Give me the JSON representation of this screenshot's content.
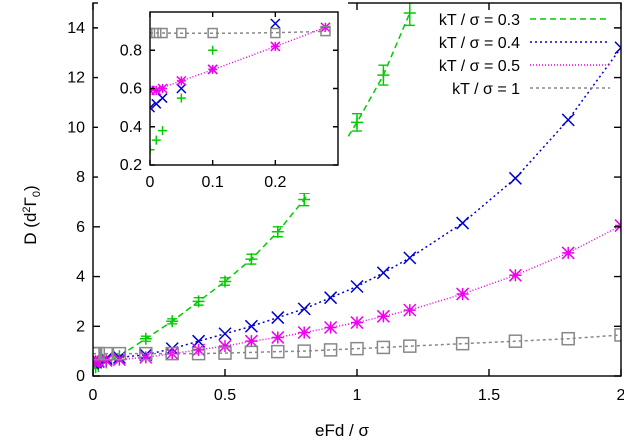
{
  "chart_data": [
    {
      "type": "line",
      "xlabel": "eFd / σ",
      "ylabel_main": "D (d",
      "ylabel_sup": "2",
      "ylabel_mid": "Γ",
      "ylabel_sub": "0",
      "ylabel_end": ")",
      "xlim": [
        0,
        2
      ],
      "ylim": [
        0,
        15
      ],
      "xticks": [
        "0",
        "0.5",
        "1",
        "1.5",
        "2"
      ],
      "yticks": [
        "0",
        "2",
        "4",
        "6",
        "8",
        "10",
        "12",
        "14"
      ],
      "xtick_values": [
        0,
        0.5,
        1,
        1.5,
        2
      ],
      "ytick_values": [
        0,
        2,
        4,
        6,
        8,
        10,
        12,
        14
      ],
      "legend_position": "top-right",
      "series": [
        {
          "name": "kT / σ = 0.3",
          "color": "#00cc00",
          "marker": "plus",
          "dash": "6,4",
          "x": [
            0,
            0.01,
            0.02,
            0.05,
            0.1,
            0.2,
            0.3,
            0.4,
            0.5,
            0.6,
            0.7,
            0.8,
            0.9,
            1.0,
            1.1,
            1.2
          ],
          "y": [
            0.3,
            0.35,
            0.4,
            0.55,
            0.8,
            1.5,
            2.2,
            3.0,
            3.8,
            4.7,
            5.8,
            7.1,
            8.5,
            10.2,
            12.1,
            14.6
          ],
          "err": [
            0,
            0,
            0,
            0,
            0,
            0.1,
            0.1,
            0.15,
            0.15,
            0.2,
            0.2,
            0.25,
            0.3,
            0.35,
            0.4,
            0.5
          ]
        },
        {
          "name": "kT / σ = 0.4",
          "color": "#0000cc",
          "marker": "cross",
          "dash": "2,3",
          "x": [
            0,
            0.01,
            0.02,
            0.05,
            0.1,
            0.2,
            0.3,
            0.4,
            0.5,
            0.6,
            0.7,
            0.8,
            0.9,
            1.0,
            1.1,
            1.2,
            1.4,
            1.6,
            1.8,
            2.0
          ],
          "y": [
            0.52,
            0.55,
            0.58,
            0.7,
            0.75,
            0.85,
            1.1,
            1.4,
            1.7,
            2.0,
            2.35,
            2.7,
            3.15,
            3.6,
            4.15,
            4.75,
            6.15,
            7.95,
            10.3,
            13.2
          ]
        },
        {
          "name": "kT / σ = 0.5",
          "color": "#ee00ee",
          "marker": "star",
          "dash": "1,2",
          "x": [
            0,
            0.01,
            0.02,
            0.05,
            0.1,
            0.2,
            0.3,
            0.4,
            0.5,
            0.6,
            0.7,
            0.8,
            0.9,
            1.0,
            1.1,
            1.2,
            1.4,
            1.6,
            1.8,
            2.0
          ],
          "y": [
            0.59,
            0.6,
            0.6,
            0.62,
            0.66,
            0.75,
            0.9,
            1.05,
            1.2,
            1.4,
            1.55,
            1.75,
            1.95,
            2.15,
            2.4,
            2.65,
            3.3,
            4.05,
            4.95,
            6.05
          ]
        },
        {
          "name": "kT / σ = 1",
          "color": "#888888",
          "marker": "square",
          "dash": "3,3",
          "x": [
            0,
            0.01,
            0.02,
            0.05,
            0.1,
            0.2,
            0.3,
            0.4,
            0.5,
            0.6,
            0.7,
            0.8,
            0.9,
            1.0,
            1.1,
            1.2,
            1.4,
            1.6,
            1.8,
            2.0
          ],
          "y": [
            0.9,
            0.9,
            0.9,
            0.9,
            0.9,
            0.9,
            0.9,
            0.9,
            0.92,
            0.95,
            0.98,
            1.0,
            1.05,
            1.1,
            1.15,
            1.2,
            1.3,
            1.4,
            1.5,
            1.65
          ]
        }
      ]
    },
    {
      "type": "line",
      "role": "inset",
      "xlim": [
        0,
        0.3
      ],
      "ylim": [
        0.2,
        1.0
      ],
      "xticks": [
        "0",
        "0.1",
        "0.2"
      ],
      "yticks": [
        "0.2",
        "0.4",
        "0.6",
        "0.8"
      ],
      "xtick_values": [
        0,
        0.1,
        0.2
      ],
      "ytick_values": [
        0.2,
        0.4,
        0.6,
        0.8
      ],
      "series": [
        {
          "name": "kT / σ = 0.3",
          "color": "#00cc00",
          "marker": "plus",
          "dash": "6,4",
          "x": [
            0,
            0.01,
            0.02,
            0.05,
            0.1
          ],
          "y": [
            0.28,
            0.33,
            0.38,
            0.55,
            0.8
          ],
          "extend": [
            0.2,
            1.5
          ]
        },
        {
          "name": "kT / σ = 0.4",
          "color": "#0000cc",
          "marker": "cross",
          "dash": "2,3",
          "x": [
            0,
            0.01,
            0.02,
            0.05,
            0.1,
            0.2
          ],
          "y": [
            0.5,
            0.52,
            0.55,
            0.6,
            0.7,
            0.94
          ],
          "extend": [
            0.3,
            1.18
          ]
        },
        {
          "name": "kT / σ = 0.5",
          "color": "#ee00ee",
          "marker": "star",
          "dash": "1,2",
          "x": [
            0,
            0.01,
            0.02,
            0.05,
            0.1,
            0.2,
            0.28
          ],
          "y": [
            0.59,
            0.59,
            0.6,
            0.64,
            0.7,
            0.82,
            0.92
          ]
        },
        {
          "name": "kT / σ = 1",
          "color": "#888888",
          "marker": "square",
          "dash": "3,3",
          "x": [
            0,
            0.01,
            0.02,
            0.05,
            0.1,
            0.2,
            0.28
          ],
          "y": [
            0.89,
            0.89,
            0.89,
            0.89,
            0.89,
            0.89,
            0.9
          ]
        }
      ]
    }
  ]
}
